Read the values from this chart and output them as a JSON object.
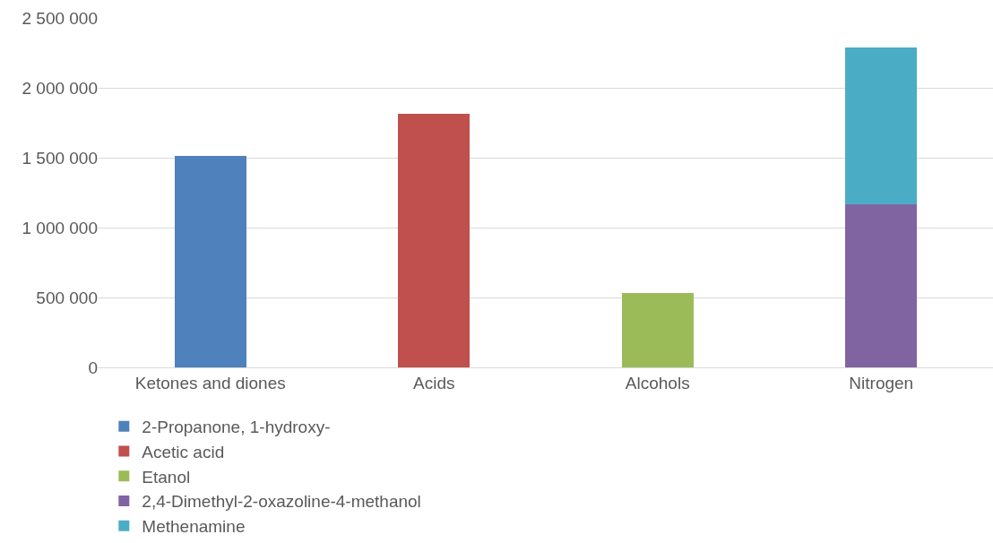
{
  "chart_data": {
    "type": "bar",
    "stacked": true,
    "categories": [
      "Ketones and diones",
      "Acids",
      "Alcohols",
      "Nitrogen"
    ],
    "series": [
      {
        "name": "2-Propanone, 1-hydroxy-",
        "color": "#4f81bd",
        "values": [
          1515000,
          null,
          null,
          null
        ]
      },
      {
        "name": "Acetic acid",
        "color": "#c0504d",
        "values": [
          null,
          1813000,
          null,
          null
        ]
      },
      {
        "name": "Etanol",
        "color": "#9bbb59",
        "values": [
          null,
          null,
          532000,
          null
        ]
      },
      {
        "name": "2,4-Dimethyl-2-oxazoline-4-methanol",
        "color": "#8064a2",
        "values": [
          null,
          null,
          null,
          1166000
        ]
      },
      {
        "name": "Methenamine",
        "color": "#4bacc6",
        "values": [
          null,
          null,
          null,
          1125000
        ]
      }
    ],
    "ylim": [
      0,
      2500000
    ],
    "yticks": [
      {
        "value": 0,
        "label": "0"
      },
      {
        "value": 500000,
        "label": "500 000"
      },
      {
        "value": 1000000,
        "label": "1 000 000"
      },
      {
        "value": 1500000,
        "label": "1 500 000"
      },
      {
        "value": 2000000,
        "label": "2 000 000"
      },
      {
        "value": 2500000,
        "label": "2 500 000"
      }
    ],
    "grid": "y",
    "legend": "bottom"
  }
}
